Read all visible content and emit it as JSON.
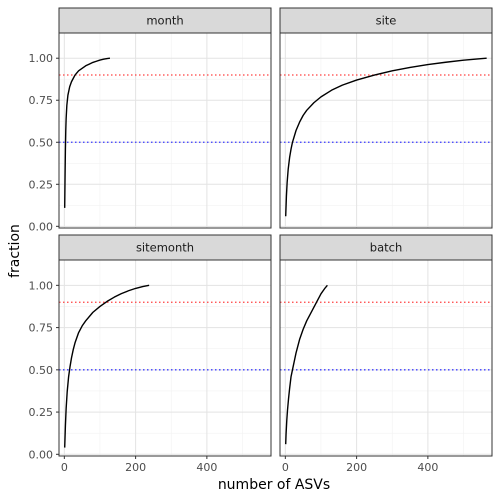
{
  "chart_data": {
    "type": "line",
    "xlabel": "number of ASVs",
    "ylabel": "fraction",
    "xlim": [
      -15,
      580
    ],
    "ylim": [
      -0.01,
      1.15
    ],
    "x_ticks": [
      0,
      200,
      400
    ],
    "x_tick_labels": [
      "0",
      "200",
      "400"
    ],
    "y_ticks": [
      0,
      0.25,
      0.5,
      0.75,
      1.0
    ],
    "y_tick_labels": [
      "0.00",
      "0.25",
      "0.50",
      "0.75",
      "1.00"
    ],
    "grid": true,
    "reference_lines": [
      {
        "y": 0.9,
        "color": "#ff4040",
        "style": "dotted"
      },
      {
        "y": 0.5,
        "color": "#3a3aff",
        "style": "dotted"
      }
    ],
    "line_color": "#000000",
    "panels": [
      {
        "name": "month",
        "x": [
          1,
          2,
          3,
          4,
          5,
          7,
          10,
          15,
          20,
          25,
          30,
          40,
          50,
          60,
          70,
          80,
          90,
          100,
          110,
          120,
          128
        ],
        "y": [
          0.11,
          0.3,
          0.46,
          0.57,
          0.64,
          0.72,
          0.78,
          0.83,
          0.86,
          0.88,
          0.9,
          0.925,
          0.94,
          0.955,
          0.965,
          0.975,
          0.982,
          0.989,
          0.994,
          0.998,
          1.0
        ]
      },
      {
        "name": "site",
        "x": [
          1,
          3,
          5,
          8,
          12,
          16,
          20,
          30,
          40,
          50,
          60,
          80,
          100,
          130,
          160,
          200,
          250,
          300,
          350,
          400,
          450,
          500,
          540,
          565
        ],
        "y": [
          0.06,
          0.18,
          0.26,
          0.34,
          0.41,
          0.46,
          0.5,
          0.57,
          0.62,
          0.66,
          0.69,
          0.735,
          0.77,
          0.81,
          0.84,
          0.87,
          0.9,
          0.925,
          0.945,
          0.962,
          0.976,
          0.988,
          0.996,
          1.0
        ]
      },
      {
        "name": "sitemonth",
        "x": [
          1,
          3,
          5,
          8,
          12,
          16,
          20,
          25,
          30,
          40,
          50,
          60,
          80,
          100,
          120,
          140,
          160,
          180,
          200,
          220,
          238
        ],
        "y": [
          0.04,
          0.17,
          0.27,
          0.37,
          0.46,
          0.52,
          0.57,
          0.62,
          0.66,
          0.72,
          0.76,
          0.79,
          0.84,
          0.875,
          0.905,
          0.93,
          0.951,
          0.968,
          0.982,
          0.993,
          1.0
        ]
      },
      {
        "name": "batch",
        "x": [
          1,
          2,
          4,
          6,
          9,
          12,
          16,
          20,
          25,
          30,
          40,
          50,
          60,
          70,
          80,
          90,
          100,
          110,
          118
        ],
        "y": [
          0.06,
          0.12,
          0.2,
          0.26,
          0.33,
          0.39,
          0.46,
          0.5,
          0.55,
          0.6,
          0.68,
          0.74,
          0.79,
          0.83,
          0.87,
          0.91,
          0.95,
          0.98,
          1.0
        ]
      }
    ]
  }
}
